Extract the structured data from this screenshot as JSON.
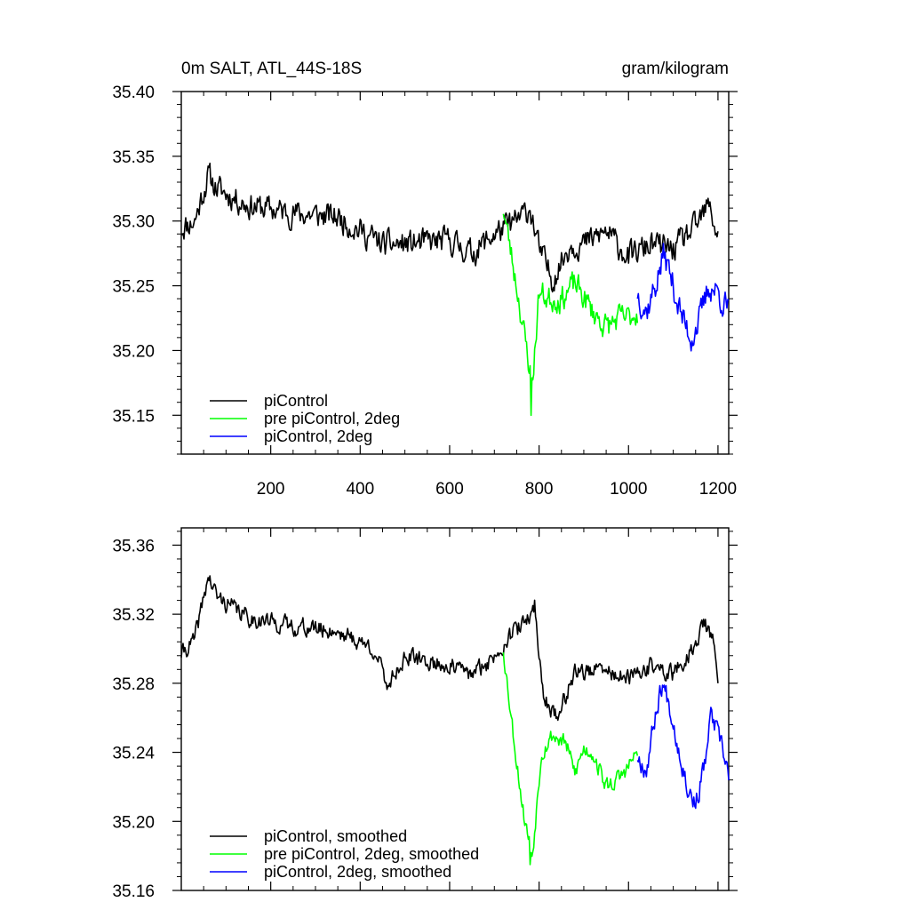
{
  "chart_data": [
    {
      "type": "line",
      "title_left": "0m SALT, ATL_44S-18S",
      "title_right": "gram/kilogram",
      "xlabel": "",
      "ylabel": "",
      "xlim": [
        0,
        1224
      ],
      "ylim": [
        35.12,
        35.4
      ],
      "x_ticks": [
        200,
        400,
        600,
        800,
        1000,
        1200
      ],
      "x_tick_labels": [
        "200",
        "400",
        "600",
        "800",
        "1000",
        "1200"
      ],
      "y_ticks": [
        35.15,
        35.2,
        35.25,
        35.3,
        35.35,
        35.4
      ],
      "y_tick_labels": [
        "35.15",
        "35.20",
        "35.25",
        "35.30",
        "35.35",
        "35.40"
      ],
      "legend_position": "bottom-left",
      "series": [
        {
          "name": "piControl",
          "color": "#000000",
          "x_range": [
            0,
            1200
          ],
          "noise": 0.016,
          "seed": 11,
          "x": [
            0,
            30,
            60,
            80,
            150,
            250,
            350,
            450,
            500,
            600,
            650,
            700,
            750,
            780,
            800,
            830,
            870,
            900,
            950,
            1000,
            1050,
            1100,
            1150,
            1180,
            1200
          ],
          "values": [
            35.295,
            35.3,
            35.335,
            35.325,
            35.312,
            35.306,
            35.303,
            35.282,
            35.282,
            35.285,
            35.275,
            35.29,
            35.3,
            35.31,
            35.278,
            35.255,
            35.282,
            35.282,
            35.292,
            35.272,
            35.282,
            35.278,
            35.295,
            35.312,
            35.288
          ]
        },
        {
          "name": "pre piControl, 2deg",
          "color": "#00ff00",
          "x_range": [
            720,
            1020
          ],
          "noise": 0.016,
          "seed": 23,
          "x": [
            720,
            750,
            770,
            785,
            800,
            820,
            850,
            880,
            920,
            950,
            980,
            1000,
            1020
          ],
          "values": [
            35.31,
            35.25,
            35.205,
            35.175,
            35.245,
            35.24,
            35.24,
            35.252,
            35.23,
            35.218,
            35.225,
            35.225,
            35.23
          ],
          "min_point": {
            "x": 782,
            "value": 35.15
          }
        },
        {
          "name": "piControl, 2deg",
          "color": "#0000ff",
          "x_range": [
            1020,
            1224
          ],
          "noise": 0.018,
          "seed": 37,
          "x": [
            1020,
            1040,
            1060,
            1080,
            1100,
            1120,
            1140,
            1160,
            1180,
            1200,
            1224
          ],
          "values": [
            35.245,
            35.23,
            35.25,
            35.275,
            35.25,
            35.225,
            35.21,
            35.225,
            35.25,
            35.245,
            35.23
          ]
        }
      ]
    },
    {
      "type": "line",
      "title_left": "",
      "title_right": "",
      "xlabel": "",
      "ylabel": "",
      "xlim": [
        0,
        1224
      ],
      "ylim": [
        35.16,
        35.37
      ],
      "x_ticks": [
        200,
        400,
        600,
        800,
        1000,
        1200
      ],
      "x_tick_labels": [],
      "y_ticks": [
        35.16,
        35.2,
        35.24,
        35.28,
        35.32,
        35.36
      ],
      "y_tick_labels": [
        "35.16",
        "35.20",
        "35.24",
        "35.28",
        "35.32",
        "35.36"
      ],
      "legend_position": "bottom-left",
      "series": [
        {
          "name": "piControl, smoothed",
          "color": "#000000",
          "x_range": [
            0,
            1200
          ],
          "noise": 0.008,
          "seed": 41,
          "x": [
            0,
            30,
            60,
            80,
            150,
            250,
            350,
            430,
            460,
            500,
            600,
            650,
            700,
            730,
            770,
            790,
            810,
            840,
            880,
            950,
            1000,
            1050,
            1100,
            1150,
            1170,
            1190,
            1200
          ],
          "values": [
            35.297,
            35.305,
            35.342,
            35.33,
            35.318,
            35.313,
            35.31,
            35.3,
            35.279,
            35.295,
            35.29,
            35.285,
            35.295,
            35.307,
            35.315,
            35.325,
            35.272,
            35.26,
            35.287,
            35.287,
            35.282,
            35.29,
            35.285,
            35.302,
            35.316,
            35.302,
            35.285
          ]
        },
        {
          "name": "pre piControl, 2deg, smoothed",
          "color": "#00ff00",
          "x_range": [
            720,
            1020
          ],
          "noise": 0.008,
          "seed": 53,
          "x": [
            720,
            745,
            765,
            785,
            805,
            830,
            860,
            880,
            900,
            920,
            950,
            980,
            1000,
            1020
          ],
          "values": [
            35.3,
            35.245,
            35.205,
            35.18,
            35.24,
            35.25,
            35.245,
            35.228,
            35.242,
            35.24,
            35.22,
            35.225,
            35.232,
            35.24
          ],
          "min_point": {
            "x": 780,
            "value": 35.175
          }
        },
        {
          "name": "piControl, 2deg, smoothed",
          "color": "#0000ff",
          "x_range": [
            1020,
            1224
          ],
          "noise": 0.01,
          "seed": 67,
          "x": [
            1020,
            1040,
            1060,
            1075,
            1090,
            1110,
            1130,
            1150,
            1170,
            1185,
            1200,
            1224
          ],
          "values": [
            35.238,
            35.23,
            35.262,
            35.28,
            35.27,
            35.245,
            35.222,
            35.21,
            35.232,
            35.262,
            35.25,
            35.228
          ]
        }
      ]
    }
  ]
}
